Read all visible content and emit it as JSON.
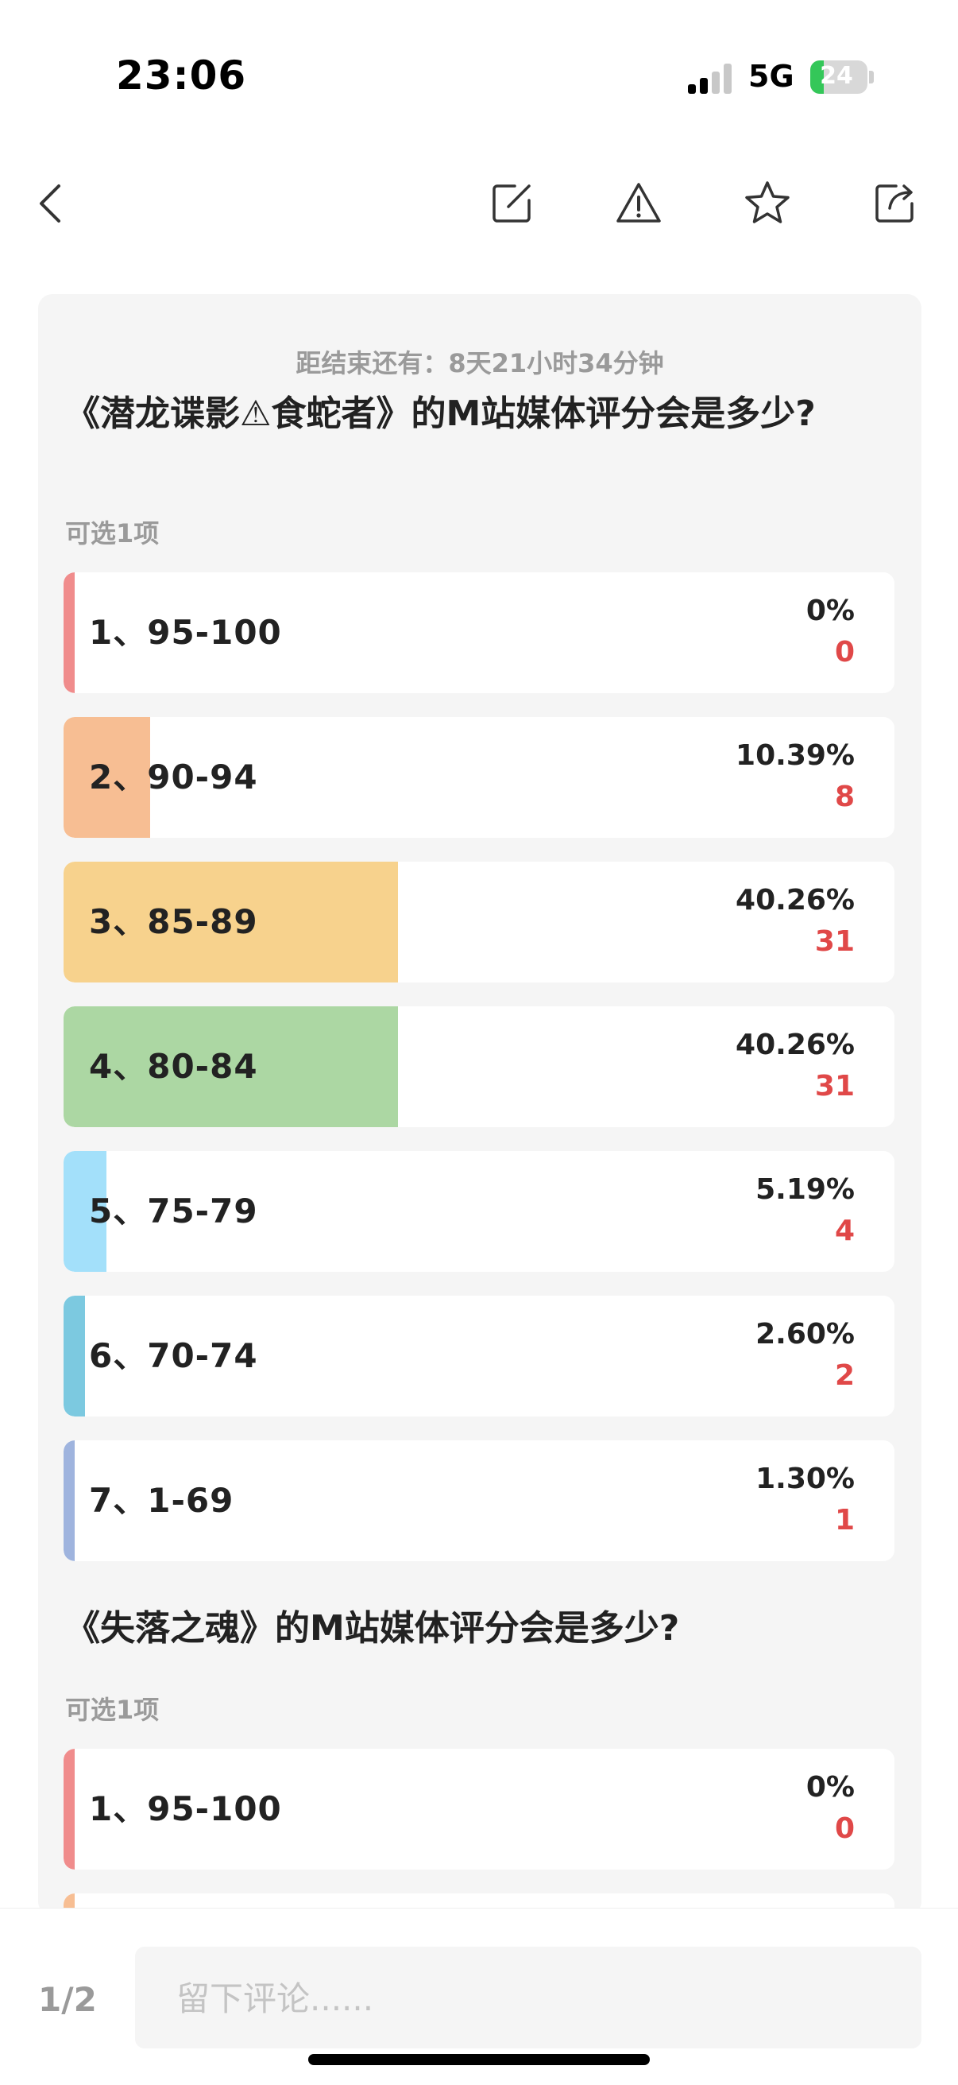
{
  "status_bar": {
    "time": "23:06",
    "network": "5G",
    "battery": "24",
    "battery_level": 0.24,
    "signal_bars": 2
  },
  "nav": {
    "icons": [
      "back-icon",
      "edit-icon",
      "warning-icon",
      "star-icon",
      "share-icon"
    ]
  },
  "poll": {
    "countdown": "距结束还有：8天21小时34分钟",
    "questions": [
      {
        "title": "《潜龙谍影⚠食蛇者》的M站媒体评分会是多少?",
        "subtitle": "可选1项",
        "options": [
          {
            "label": "1、95-100",
            "percent": "0%",
            "count": "0",
            "share": 0,
            "color": "#f08c8c"
          },
          {
            "label": "2、90-94",
            "percent": "10.39%",
            "count": "8",
            "share": 0.1039,
            "color": "#f7be93"
          },
          {
            "label": "3、85-89",
            "percent": "40.26%",
            "count": "31",
            "share": 0.4026,
            "color": "#f7d28d"
          },
          {
            "label": "4、80-84",
            "percent": "40.26%",
            "count": "31",
            "share": 0.4026,
            "color": "#acd7a3"
          },
          {
            "label": "5、75-79",
            "percent": "5.19%",
            "count": "4",
            "share": 0.0519,
            "color": "#a3e0fa"
          },
          {
            "label": "6、70-74",
            "percent": "2.60%",
            "count": "2",
            "share": 0.026,
            "color": "#7cc9e0"
          },
          {
            "label": "7、1-69",
            "percent": "1.30%",
            "count": "1",
            "share": 0.013,
            "color": "#9fb4de"
          }
        ]
      },
      {
        "title": "《失落之魂》的M站媒体评分会是多少?",
        "subtitle": "可选1项",
        "options": [
          {
            "label": "1、95-100",
            "percent": "0%",
            "count": "0",
            "share": 0,
            "color": "#f08c8c"
          }
        ]
      }
    ]
  },
  "bottom_bar": {
    "page_indicator": "1/2",
    "comment_placeholder": "留下评论......"
  }
}
